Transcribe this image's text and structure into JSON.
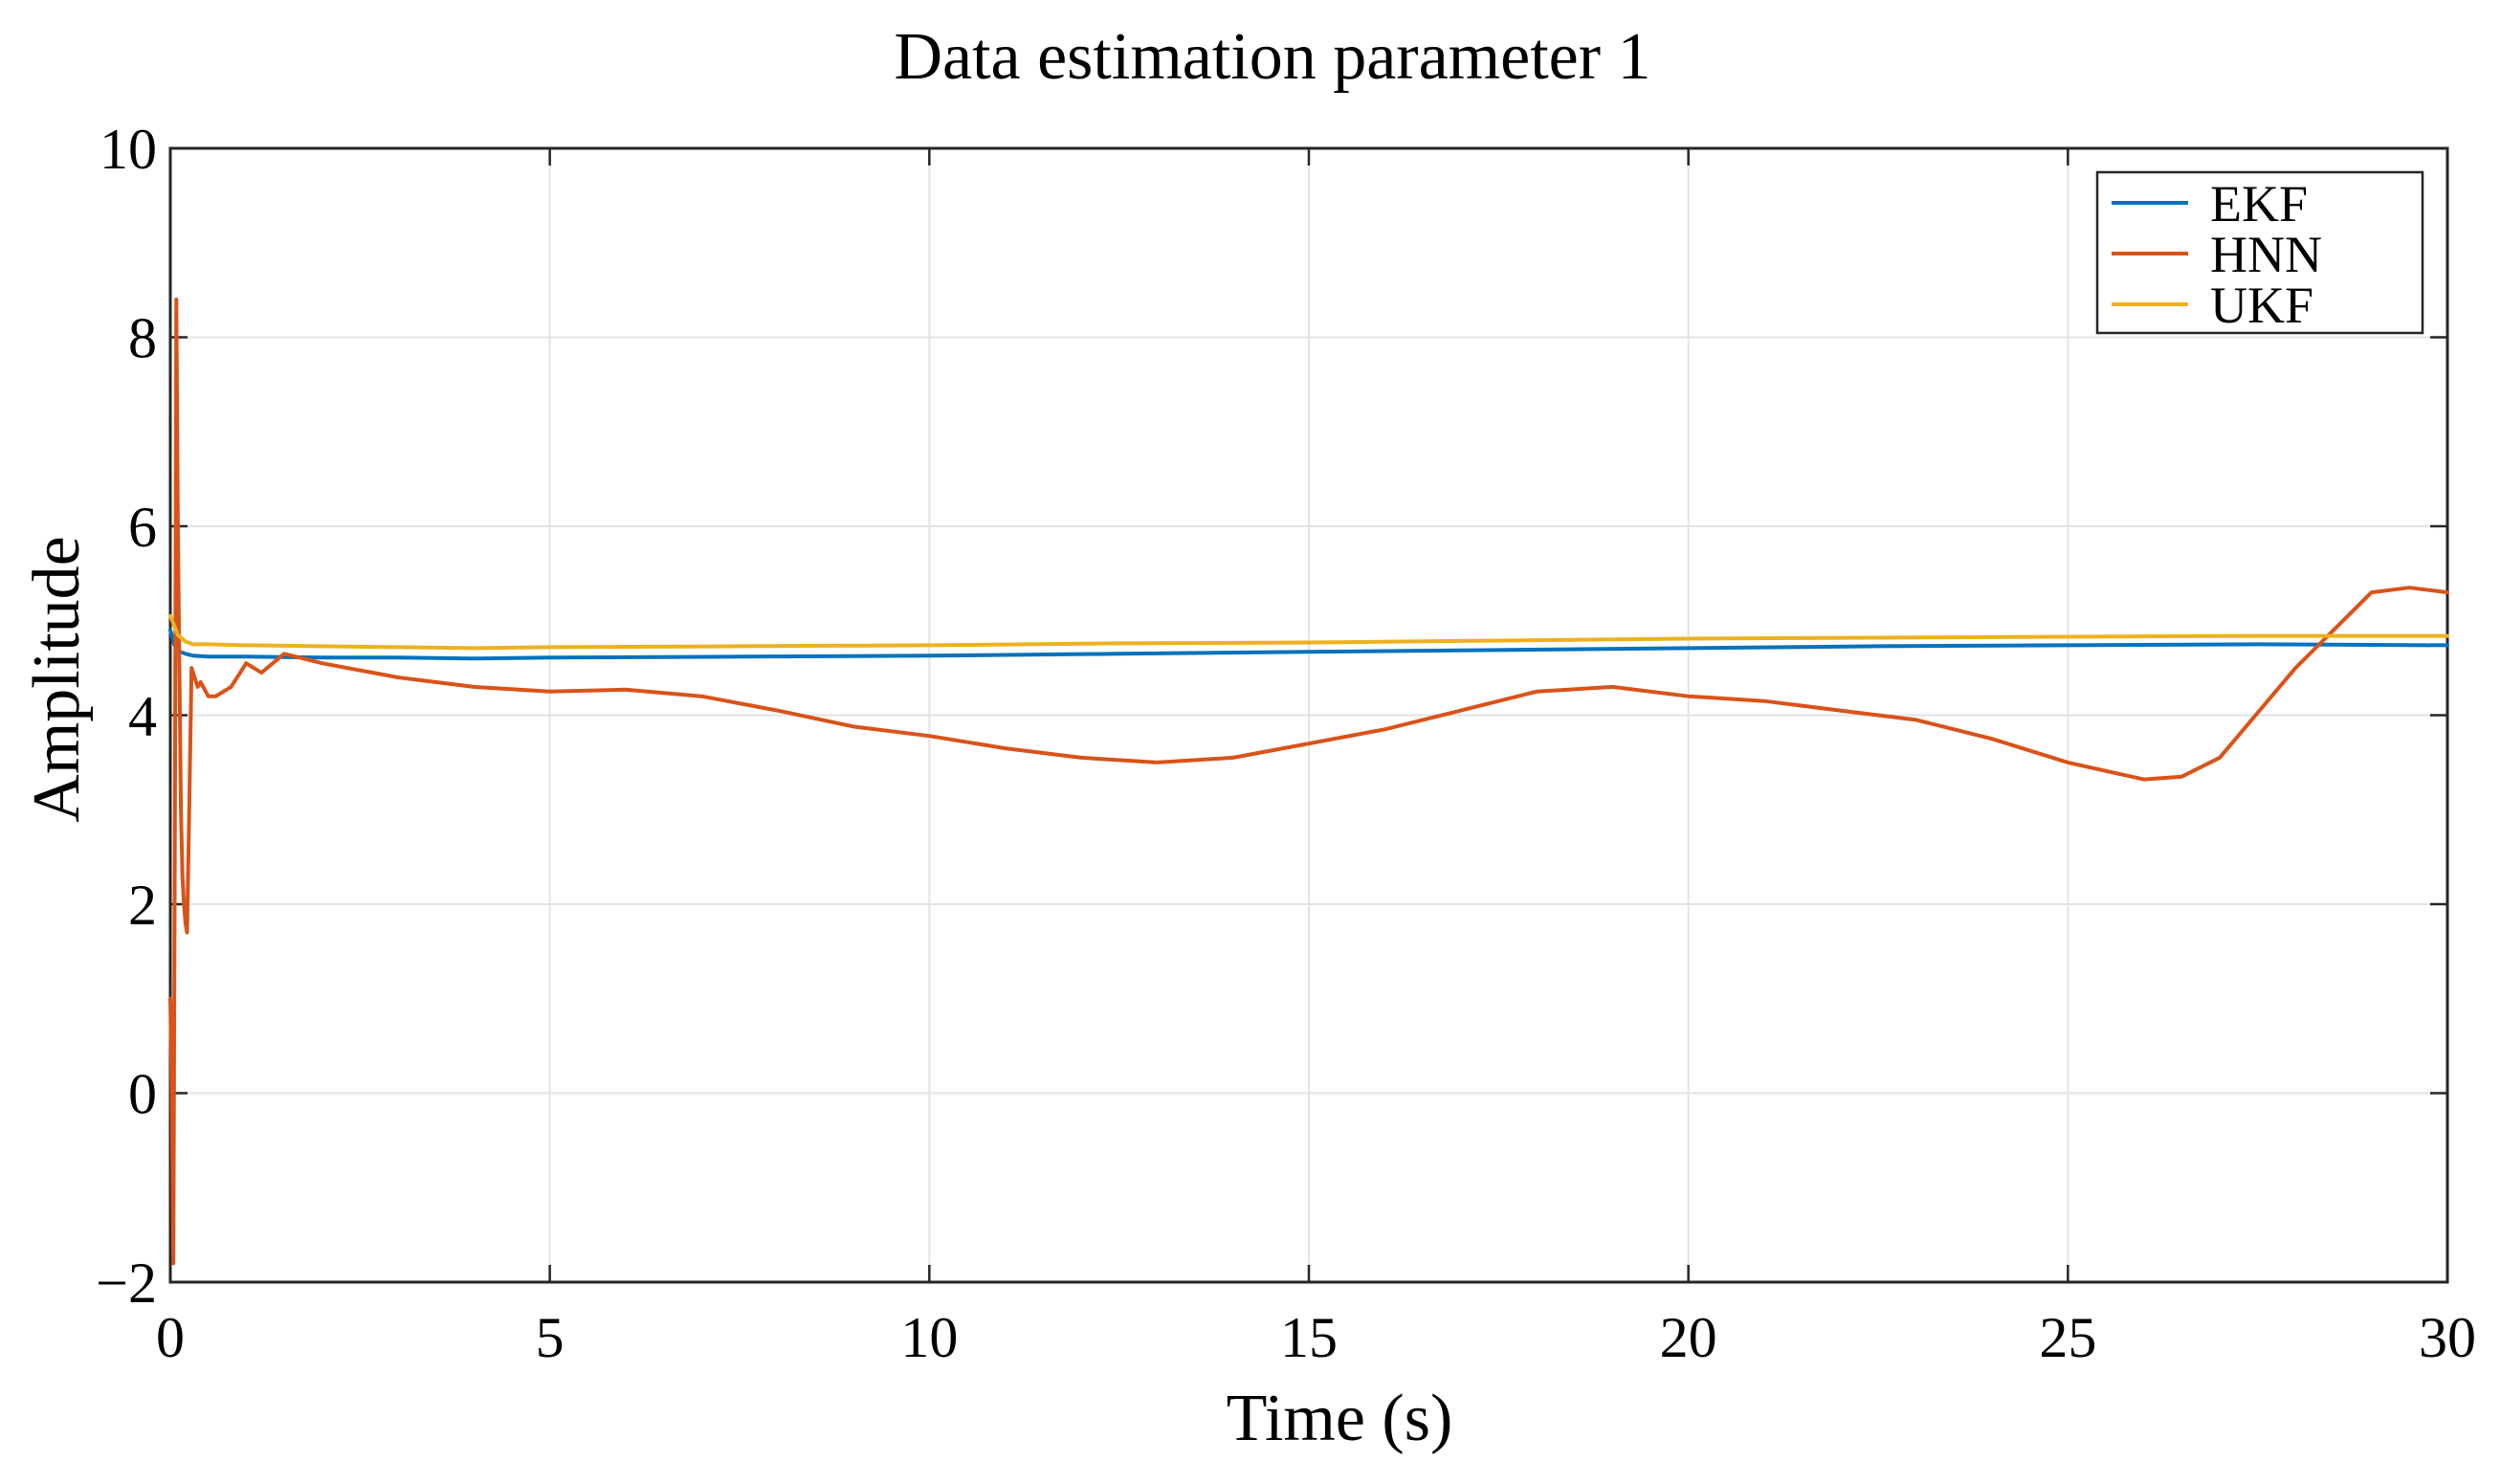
{
  "chart_data": {
    "type": "line",
    "title": "Data estimation parameter 1",
    "xlabel": "Time (s)",
    "ylabel": "Amplitude",
    "xlim": [
      0,
      30
    ],
    "ylim": [
      -2,
      10
    ],
    "xticks": [
      0,
      5,
      10,
      15,
      20,
      25,
      30
    ],
    "yticks": [
      -2,
      0,
      2,
      4,
      6,
      8,
      10
    ],
    "xtick_labels": [
      "0",
      "5",
      "10",
      "15",
      "20",
      "25",
      "30"
    ],
    "ytick_labels": [
      "−2",
      "0",
      "2",
      "4",
      "6",
      "8",
      "10"
    ],
    "grid": true,
    "legend_position": "top-right",
    "series": [
      {
        "name": "EKF",
        "color": "#0072BD",
        "x": [
          0,
          0.05,
          0.1,
          0.2,
          0.3,
          0.5,
          1,
          2,
          3,
          4,
          5,
          7.5,
          10,
          12.5,
          15,
          17.5,
          20,
          22.5,
          25,
          27.5,
          30
        ],
        "y": [
          4.9,
          4.75,
          4.68,
          4.65,
          4.63,
          4.62,
          4.62,
          4.61,
          4.61,
          4.6,
          4.61,
          4.62,
          4.63,
          4.65,
          4.67,
          4.69,
          4.71,
          4.73,
          4.74,
          4.75,
          4.74
        ]
      },
      {
        "name": "HNN",
        "color": "#D95319",
        "x": [
          0,
          0.02,
          0.04,
          0.06,
          0.08,
          0.1,
          0.12,
          0.14,
          0.16,
          0.18,
          0.2,
          0.22,
          0.25,
          0.28,
          0.32,
          0.36,
          0.4,
          0.5,
          0.6,
          0.8,
          1.0,
          1.2,
          1.5,
          2,
          3,
          4,
          5,
          6,
          7,
          8,
          9,
          10,
          11,
          12,
          13,
          14,
          15,
          16,
          17,
          18,
          19,
          20,
          21,
          22,
          23,
          24,
          25,
          26,
          26.5,
          27,
          28,
          28.5,
          29,
          29.5,
          30
        ],
        "y": [
          1.0,
          0.0,
          -1.8,
          2.9,
          8.4,
          6.0,
          4.5,
          3.0,
          2.3,
          2.0,
          1.8,
          1.7,
          3.0,
          4.5,
          4.4,
          4.3,
          4.35,
          4.2,
          4.2,
          4.3,
          4.55,
          4.45,
          4.65,
          4.55,
          4.4,
          4.3,
          4.25,
          4.27,
          4.2,
          4.05,
          3.88,
          3.78,
          3.65,
          3.55,
          3.5,
          3.55,
          3.7,
          3.85,
          4.05,
          4.25,
          4.3,
          4.2,
          4.15,
          4.05,
          3.95,
          3.75,
          3.5,
          3.32,
          3.35,
          3.55,
          4.5,
          4.9,
          5.3,
          5.35,
          5.3
        ]
      },
      {
        "name": "UKF",
        "color": "#EDB120",
        "x": [
          0,
          0.05,
          0.1,
          0.2,
          0.3,
          0.5,
          1,
          2,
          3,
          4,
          5,
          7.5,
          10,
          12.5,
          15,
          17.5,
          20,
          22.5,
          25,
          27.5,
          30
        ],
        "y": [
          5.05,
          4.95,
          4.85,
          4.78,
          4.75,
          4.75,
          4.74,
          4.73,
          4.72,
          4.71,
          4.72,
          4.73,
          4.74,
          4.76,
          4.77,
          4.79,
          4.81,
          4.82,
          4.83,
          4.84,
          4.84
        ]
      }
    ]
  }
}
